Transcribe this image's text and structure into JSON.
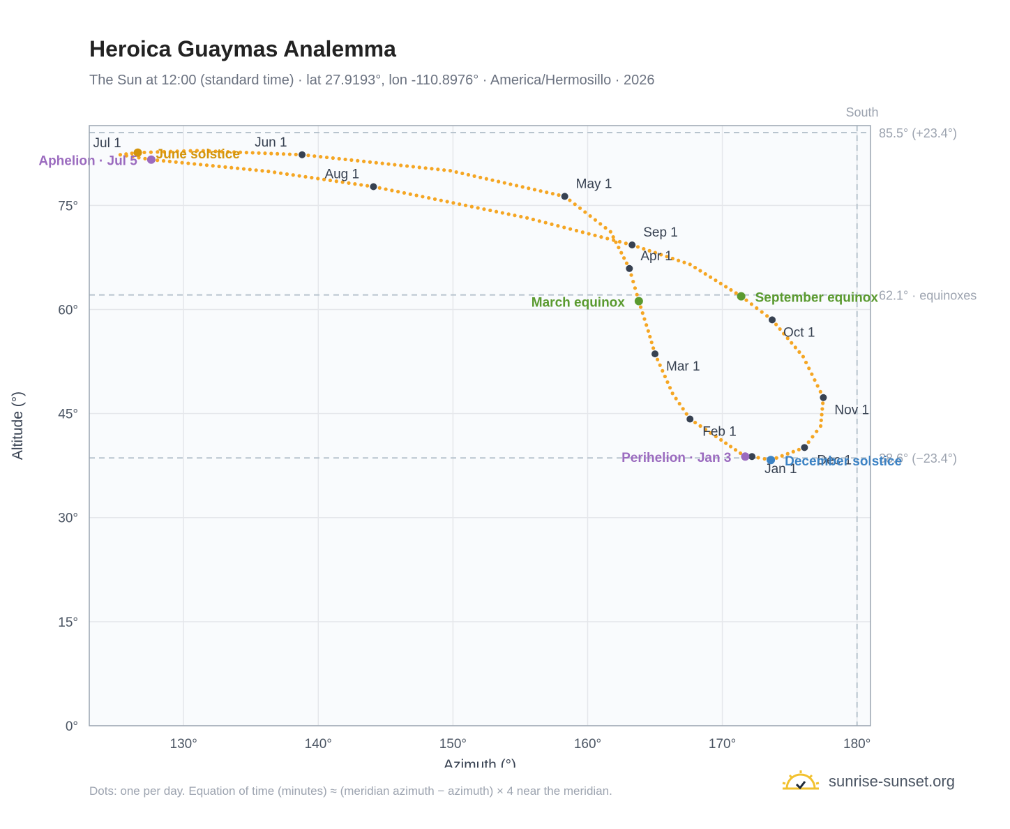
{
  "header": {
    "title": "Heroica Guaymas Analemma",
    "subtitle": "The Sun at 12:00 (standard time) · lat 27.9193°, lon -110.8976° · America/Hermosillo · 2026"
  },
  "footer": {
    "note": "Dots: one per day. Equation of time (minutes) ≈ (meridian azimuth − azimuth) × 4 near the meridian.",
    "brand": "sunrise-sunset.org"
  },
  "colors": {
    "curve": "#f5a623",
    "month_dot": "#374151",
    "equinox": "#5a9a2f",
    "june_solstice": "#d4940a",
    "december_solstice": "#3b82c4",
    "apsis": "#9b6bbf",
    "plot_bg": "#f9fbfd",
    "grid": "#e5e7eb",
    "ref_line": "#b8c4ce"
  },
  "chart_data": {
    "type": "scatter",
    "xlabel": "Azimuth (°)",
    "ylabel": "Altitude (°)",
    "xlim": [
      123,
      181
    ],
    "ylim": [
      0,
      86.5
    ],
    "xticks": [
      130,
      140,
      150,
      160,
      170,
      180
    ],
    "xtick_labels": [
      "130°",
      "140°",
      "150°",
      "160°",
      "170°",
      "180°"
    ],
    "yticks": [
      0,
      15,
      30,
      45,
      60,
      75
    ],
    "ytick_labels": [
      "0°",
      "15°",
      "30°",
      "45°",
      "60°",
      "75°"
    ],
    "grid": true,
    "meridian": {
      "azimuth": 180,
      "label": "South"
    },
    "reference_lines": [
      {
        "altitude": 85.5,
        "label": "85.5° (+23.4°)"
      },
      {
        "altitude": 62.1,
        "label": "62.1° · equinoxes"
      },
      {
        "altitude": 38.6,
        "label": "38.6° (−23.4°)"
      }
    ],
    "months": [
      {
        "label": "Jan 1",
        "az": 172.2,
        "alt": 38.8,
        "dx": 18,
        "dy": 24
      },
      {
        "label": "Feb 1",
        "az": 167.6,
        "alt": 44.2,
        "dx": 18,
        "dy": 24
      },
      {
        "label": "Mar 1",
        "az": 165.0,
        "alt": 53.6,
        "dx": 16,
        "dy": 24
      },
      {
        "label": "Apr 1",
        "az": 163.1,
        "alt": 65.9,
        "dx": 16,
        "dy": -12
      },
      {
        "label": "May 1",
        "az": 158.3,
        "alt": 76.3,
        "dx": 16,
        "dy": -12
      },
      {
        "label": "Jun 1",
        "az": 138.8,
        "alt": 82.3,
        "dx": -68,
        "dy": -12
      },
      {
        "label": "Jul 1",
        "az": 126.6,
        "alt": 82.6,
        "dx": -64,
        "dy": -8
      },
      {
        "label": "Aug 1",
        "az": 144.1,
        "alt": 77.7,
        "dx": -70,
        "dy": -12
      },
      {
        "label": "Sep 1",
        "az": 163.3,
        "alt": 69.3,
        "dx": 16,
        "dy": -12
      },
      {
        "label": "Oct 1",
        "az": 173.7,
        "alt": 58.5,
        "dx": 16,
        "dy": 24
      },
      {
        "label": "Nov 1",
        "az": 177.5,
        "alt": 47.3,
        "dx": 16,
        "dy": 24
      },
      {
        "label": "Dec 1",
        "az": 176.1,
        "alt": 40.1,
        "dx": 18,
        "dy": 24
      }
    ],
    "events": [
      {
        "label": "June solstice",
        "az": 126.6,
        "alt": 82.6,
        "color_key": "june_solstice",
        "anchor": "start",
        "dx": 26,
        "dy": 8
      },
      {
        "label": "Aphelion · Jul 5",
        "az": 127.6,
        "alt": 81.6,
        "color_key": "apsis",
        "anchor": "end",
        "dx": -20,
        "dy": 8
      },
      {
        "label": "March equinox",
        "az": 163.8,
        "alt": 61.2,
        "color_key": "equinox",
        "anchor": "end",
        "dx": -20,
        "dy": 8
      },
      {
        "label": "September equinox",
        "az": 171.4,
        "alt": 61.9,
        "color_key": "equinox",
        "anchor": "start",
        "dx": 20,
        "dy": 8
      },
      {
        "label": "Perihelion · Jan 3",
        "az": 171.7,
        "alt": 38.8,
        "color_key": "apsis",
        "anchor": "end",
        "dx": -20,
        "dy": 8
      },
      {
        "label": "December solstice",
        "az": 173.6,
        "alt": 38.3,
        "color_key": "december_solstice",
        "anchor": "start",
        "dx": 20,
        "dy": 8
      }
    ],
    "path": [
      [
        172.2,
        38.8
      ],
      [
        171.7,
        38.8
      ],
      [
        169.9,
        41.2
      ],
      [
        167.6,
        44.2
      ],
      [
        166.3,
        47.9
      ],
      [
        165.0,
        53.6
      ],
      [
        164.5,
        56.9
      ],
      [
        163.8,
        61.2
      ],
      [
        163.1,
        65.9
      ],
      [
        161.7,
        71.2
      ],
      [
        158.3,
        76.3
      ],
      [
        149.8,
        80.0
      ],
      [
        138.8,
        82.3
      ],
      [
        131.0,
        82.9
      ],
      [
        126.6,
        82.6
      ],
      [
        125.3,
        82.3
      ],
      [
        127.6,
        81.6
      ],
      [
        136.3,
        79.9
      ],
      [
        144.1,
        77.7
      ],
      [
        155.5,
        73.2
      ],
      [
        163.3,
        69.3
      ],
      [
        167.6,
        66.5
      ],
      [
        171.4,
        61.9
      ],
      [
        173.7,
        58.5
      ],
      [
        176.0,
        53.2
      ],
      [
        177.5,
        47.3
      ],
      [
        177.3,
        43.2
      ],
      [
        176.1,
        40.1
      ],
      [
        173.6,
        38.3
      ]
    ]
  }
}
